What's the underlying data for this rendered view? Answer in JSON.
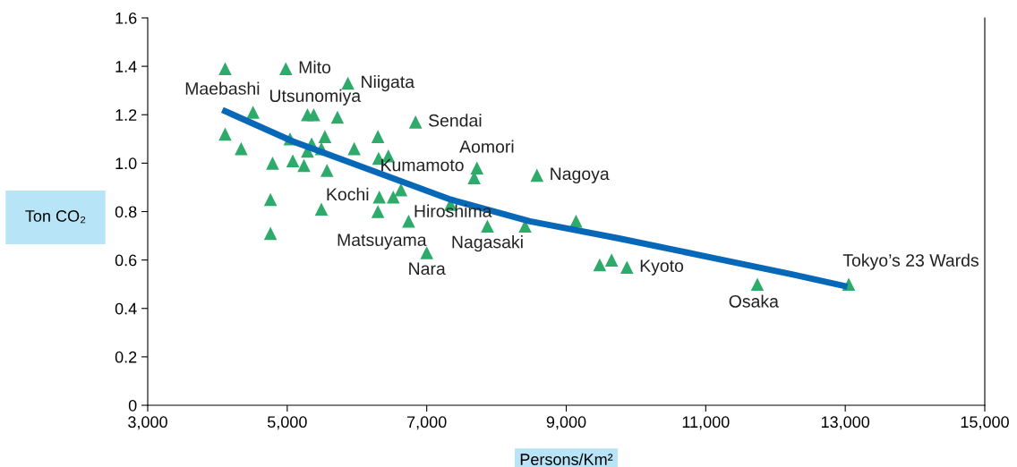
{
  "chart_data": {
    "type": "scatter",
    "xlabel": "Persons/Km²",
    "ylabel": "Ton CO₂",
    "xlim": [
      3000,
      15000
    ],
    "xticks": [
      {
        "value": 3000,
        "label": "3,000"
      },
      {
        "value": 5000,
        "label": "5,000"
      },
      {
        "value": 7000,
        "label": "7,000"
      },
      {
        "value": 9000,
        "label": "9,000"
      },
      {
        "value": 11000,
        "label": "11,000"
      },
      {
        "value": 13000,
        "label": "13,000"
      },
      {
        "value": 15000,
        "label": "15,000"
      }
    ],
    "ylim": [
      0,
      1.6
    ],
    "yticks": [
      0,
      0.2,
      0.4,
      0.6,
      0.8,
      {
        "value": 1.0,
        "label": "1.0"
      },
      1.2,
      1.4,
      1.6
    ],
    "grid": false,
    "marker": "triangle",
    "series": [
      {
        "color": "#2eaa6a",
        "x": [
          4110,
          4980,
          5870,
          4510,
          5290,
          5380,
          5720,
          4110,
          4340,
          5040,
          5540,
          6300,
          6840,
          5350,
          5290,
          5490,
          5960,
          6310,
          6450,
          4790,
          5080,
          5240,
          5570,
          7720,
          7680,
          4760,
          6320,
          6520,
          6630,
          5490,
          6300,
          7340,
          6740,
          4760,
          7000,
          7870,
          8410,
          9140,
          8580,
          9480,
          9650,
          9870,
          11740,
          13050
        ],
        "values": [
          1.39,
          1.39,
          1.33,
          1.21,
          1.2,
          1.2,
          1.19,
          1.12,
          1.06,
          1.1,
          1.11,
          1.11,
          1.17,
          1.08,
          1.05,
          1.06,
          1.06,
          1.02,
          1.03,
          1.0,
          1.01,
          0.99,
          0.97,
          0.98,
          0.94,
          0.85,
          0.86,
          0.86,
          0.89,
          0.81,
          0.8,
          0.83,
          0.76,
          0.71,
          0.63,
          0.74,
          0.74,
          0.76,
          0.95,
          0.58,
          0.6,
          0.57,
          0.5,
          0.5
        ]
      },
      {
        "type": "line",
        "marker": "none",
        "color": "#0868b8",
        "x": [
          4070,
          5080,
          6210,
          7340,
          8480,
          9740,
          11000,
          12250,
          13030
        ],
        "values": [
          1.22,
          1.09,
          0.97,
          0.85,
          0.76,
          0.69,
          0.615,
          0.54,
          0.49
        ]
      }
    ],
    "annotations": [
      {
        "text": "Mito",
        "x": 4980,
        "y": 1.39
      },
      {
        "text": "Niigata",
        "x": 5870,
        "y": 1.33
      },
      {
        "text": "Maebashi",
        "x": 4070,
        "y": 1.22
      },
      {
        "text": "Utsunomiya",
        "x": 5290,
        "y": 1.2
      },
      {
        "text": "Sendai",
        "x": 6840,
        "y": 1.17
      },
      {
        "text": "Aomori",
        "x": 7720,
        "y": 0.98
      },
      {
        "text": "Kumamoto",
        "x": 7680,
        "y": 0.94
      },
      {
        "text": "Nagoya",
        "x": 8580,
        "y": 0.95
      },
      {
        "text": "Kochi",
        "x": 6320,
        "y": 0.86
      },
      {
        "text": "Hiroshima",
        "x": 6740,
        "y": 0.76
      },
      {
        "text": "Matsuyama",
        "x": 6300,
        "y": 0.8
      },
      {
        "text": "Nagasaki",
        "x": 7870,
        "y": 0.74
      },
      {
        "text": "Nara",
        "x": 7000,
        "y": 0.63
      },
      {
        "text": "Kyoto",
        "x": 9870,
        "y": 0.57
      },
      {
        "text": "Osaka",
        "x": 11740,
        "y": 0.5
      },
      {
        "text": "Tokyo’s 23 Wards",
        "x": 13050,
        "y": 0.5
      }
    ]
  }
}
